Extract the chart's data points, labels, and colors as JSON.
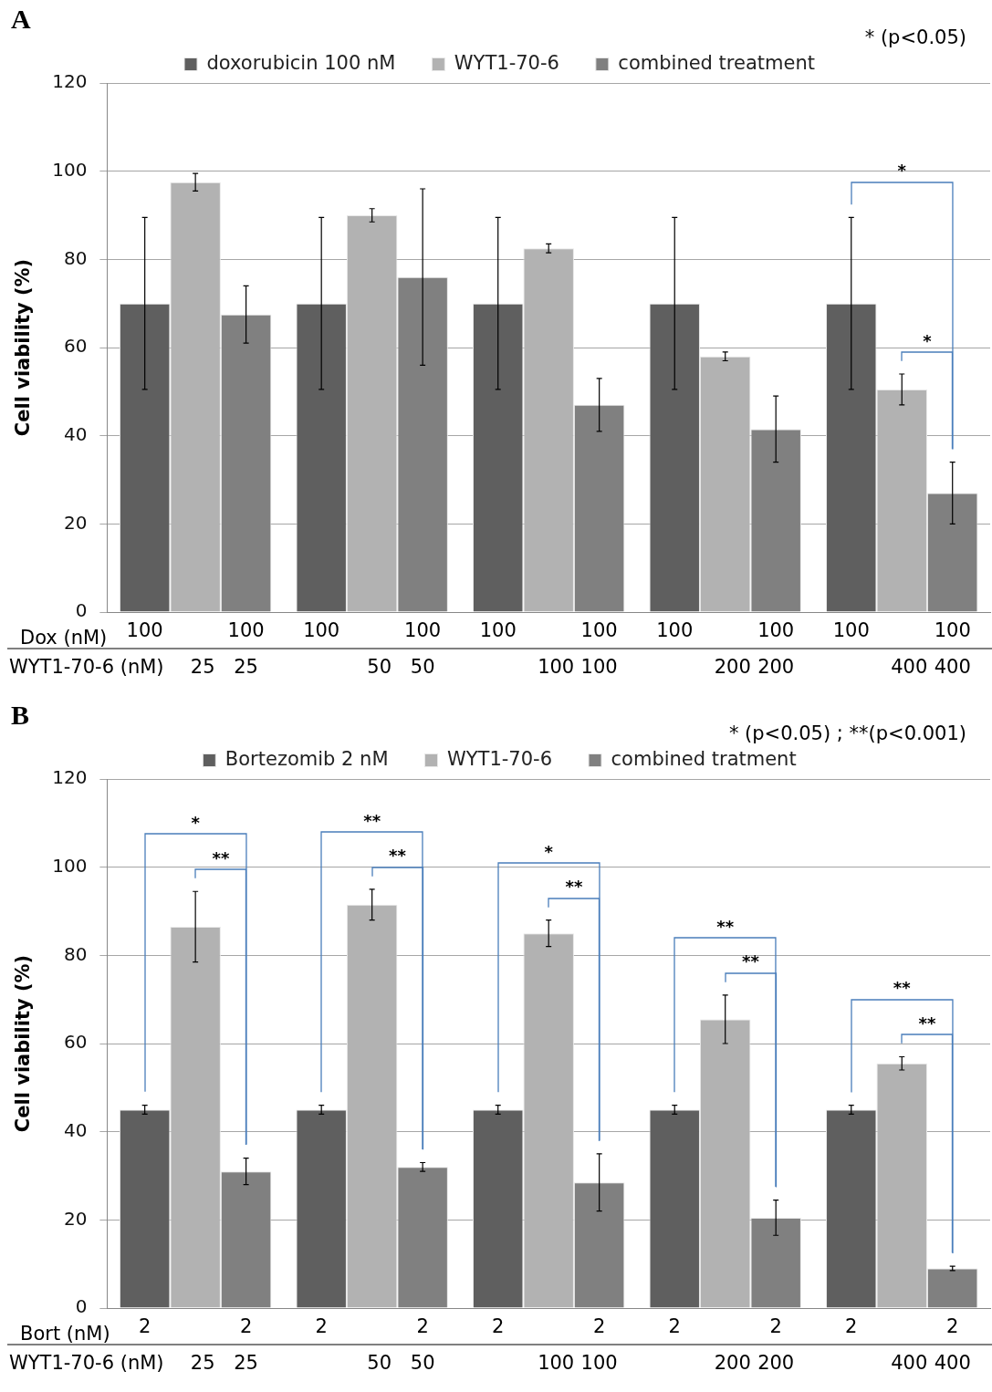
{
  "chart_data": [
    {
      "type": "bar",
      "title": "A",
      "ylabel": "Cell viability (%)",
      "categories": [
        null,
        null,
        null,
        null,
        null
      ],
      "legend": "top",
      "grid": "y",
      "ylim": [
        0,
        120
      ],
      "yticks": [
        0,
        20,
        40,
        60,
        80,
        100,
        120
      ],
      "series": [
        {
          "name": "doxorubicin 100 nM",
          "color": "#5f5f5f",
          "values": [
            70,
            70,
            70,
            70,
            70
          ],
          "errors": [
            19.5,
            19.5,
            19.5,
            19.5,
            19.5
          ]
        },
        {
          "name": "WYT1-70-6",
          "color": "#b2b2b2",
          "values": [
            97.5,
            90,
            82.5,
            58,
            50.5
          ],
          "errors": [
            2,
            1.5,
            1,
            1,
            3.5
          ]
        },
        {
          "name": "combined treatment",
          "color": "#808080",
          "values": [
            67.5,
            76,
            47,
            41.5,
            27
          ],
          "errors": [
            6.5,
            20,
            6,
            7.5,
            7
          ]
        }
      ],
      "annotations": [
        "Dox (nM)",
        "WYT1-70-6 (nM)",
        "100",
        "100",
        "25",
        "25",
        "100",
        "100",
        "50",
        "50",
        "100",
        "100",
        "100",
        "100",
        "100",
        "100",
        "200",
        "200",
        "100",
        "100",
        "400",
        "400",
        "* (p<0.05)",
        "*",
        "*"
      ]
    },
    {
      "type": "bar",
      "title": "B",
      "ylabel": "Cell viability (%)",
      "categories": [
        null,
        null,
        null,
        null,
        null
      ],
      "legend": "top",
      "grid": "y",
      "ylim": [
        0,
        120
      ],
      "yticks": [
        0,
        20,
        40,
        60,
        80,
        100,
        120
      ],
      "series": [
        {
          "name": "Bortezomib 2 nM",
          "color": "#5f5f5f",
          "values": [
            45,
            45,
            45,
            45,
            45
          ],
          "errors": [
            1,
            1,
            1,
            1,
            1
          ]
        },
        {
          "name": "WYT1-70-6",
          "color": "#b2b2b2",
          "values": [
            86.5,
            91.5,
            85,
            65.5,
            55.5
          ],
          "errors": [
            8,
            3.5,
            3,
            5.5,
            1.5
          ]
        },
        {
          "name": "combined tratment",
          "color": "#808080",
          "values": [
            31,
            32,
            28.5,
            20.5,
            9
          ],
          "errors": [
            3,
            1,
            6.5,
            4,
            0.5
          ]
        }
      ],
      "annotations": [
        "Bort (nM)",
        "WYT1-70-6 (nM)",
        "2",
        "2",
        "25",
        "25",
        "2",
        "2",
        "50",
        "50",
        "2",
        "2",
        "100",
        "100",
        "2",
        "2",
        "200",
        "200",
        "2",
        "2",
        "400",
        "400",
        "* (p<0.05) ; **(p<0.001)",
        "*",
        "**",
        "**",
        "**",
        "*",
        "**",
        "**",
        "**",
        "**",
        "**"
      ]
    }
  ]
}
